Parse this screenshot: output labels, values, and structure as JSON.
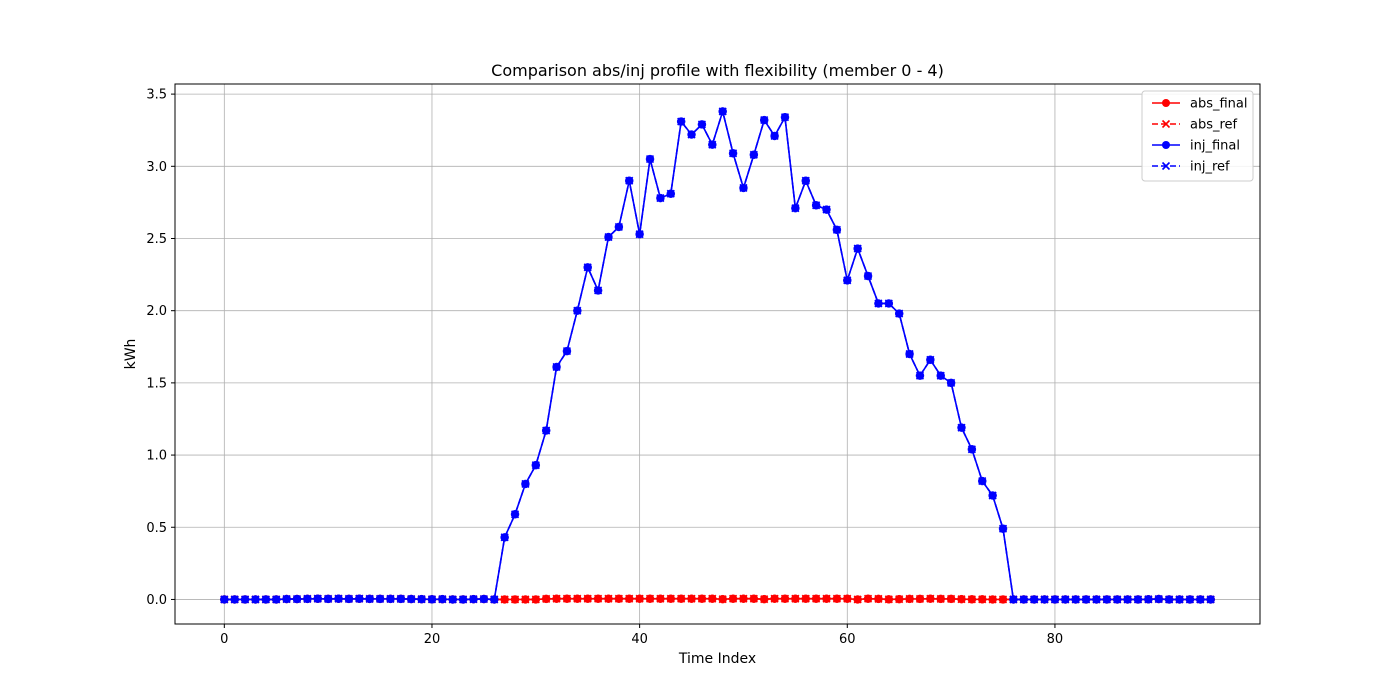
{
  "chart_data": {
    "type": "line",
    "title": "Comparison abs/inj profile with flexibility (member 0 - 4)",
    "xlabel": "Time Index",
    "ylabel": "kWh",
    "xlim": [
      -4.75,
      99.75
    ],
    "ylim": [
      -0.17,
      3.57
    ],
    "xticks": [
      0,
      20,
      40,
      60,
      80
    ],
    "yticks": [
      0.0,
      0.5,
      1.0,
      1.5,
      2.0,
      2.5,
      3.0,
      3.5
    ],
    "ytick_labels": [
      "0.0",
      "0.5",
      "1.0",
      "1.5",
      "2.0",
      "2.5",
      "3.0",
      "3.5"
    ],
    "grid": true,
    "legend_position": "top-right",
    "x": [
      0,
      1,
      2,
      3,
      4,
      5,
      6,
      7,
      8,
      9,
      10,
      11,
      12,
      13,
      14,
      15,
      16,
      17,
      18,
      19,
      20,
      21,
      22,
      23,
      24,
      25,
      26,
      27,
      28,
      29,
      30,
      31,
      32,
      33,
      34,
      35,
      36,
      37,
      38,
      39,
      40,
      41,
      42,
      43,
      44,
      45,
      46,
      47,
      48,
      49,
      50,
      51,
      52,
      53,
      54,
      55,
      56,
      57,
      58,
      59,
      60,
      61,
      62,
      63,
      64,
      65,
      66,
      67,
      68,
      69,
      70,
      71,
      72,
      73,
      74,
      75,
      76,
      77,
      78,
      79,
      80,
      81,
      82,
      83,
      84,
      85,
      86,
      87,
      88,
      89,
      90,
      91,
      92,
      93,
      94,
      95
    ],
    "series": [
      {
        "name": "abs_final",
        "color": "#ff0000",
        "line_style": "solid",
        "marker": "circle",
        "values": [
          0,
          0,
          0,
          0,
          0,
          0,
          0.003,
          0.003,
          0.004,
          0.005,
          0.004,
          0.005,
          0.004,
          0.005,
          0.004,
          0.004,
          0.004,
          0.004,
          0.003,
          0.002,
          0.001,
          0.002,
          0,
          0,
          0.002,
          0.003,
          0,
          0,
          0,
          0,
          0,
          0.004,
          0.005,
          0.005,
          0.005,
          0.005,
          0.005,
          0.005,
          0.005,
          0.005,
          0.005,
          0.005,
          0.005,
          0.005,
          0.005,
          0.005,
          0.005,
          0.005,
          0.002,
          0.005,
          0.005,
          0.005,
          0.002,
          0.005,
          0.005,
          0.005,
          0.005,
          0.005,
          0.005,
          0.005,
          0.005,
          0,
          0.005,
          0.004,
          0.001,
          0.002,
          0.004,
          0.004,
          0.005,
          0.004,
          0.004,
          0.002,
          0.001,
          0.001,
          0,
          0,
          0,
          0,
          0,
          0,
          0,
          0,
          0,
          0,
          0,
          0,
          0,
          0,
          0,
          0.001,
          0.003,
          0,
          0,
          0,
          0,
          0
        ]
      },
      {
        "name": "abs_ref",
        "color": "#ff0000",
        "line_style": "dashed",
        "marker": "x",
        "values": [
          0,
          0,
          0,
          0,
          0,
          0,
          0.003,
          0.003,
          0.004,
          0.005,
          0.004,
          0.005,
          0.004,
          0.005,
          0.004,
          0.004,
          0.004,
          0.004,
          0.003,
          0.002,
          0.001,
          0.002,
          0,
          0,
          0.002,
          0.003,
          0,
          0,
          0,
          0,
          0,
          0.004,
          0.005,
          0.005,
          0.005,
          0.005,
          0.005,
          0.005,
          0.005,
          0.005,
          0.005,
          0.005,
          0.005,
          0.005,
          0.005,
          0.005,
          0.005,
          0.005,
          0.002,
          0.005,
          0.005,
          0.005,
          0.002,
          0.005,
          0.005,
          0.005,
          0.005,
          0.005,
          0.005,
          0.005,
          0.005,
          0,
          0.005,
          0.004,
          0.001,
          0.002,
          0.004,
          0.004,
          0.005,
          0.004,
          0.004,
          0.002,
          0.001,
          0.001,
          0,
          0,
          0,
          0,
          0,
          0,
          0,
          0,
          0,
          0,
          0,
          0,
          0,
          0,
          0,
          0.001,
          0.003,
          0,
          0,
          0,
          0,
          0
        ]
      },
      {
        "name": "inj_final",
        "color": "#0000ff",
        "line_style": "solid",
        "marker": "circle",
        "values": [
          0,
          0,
          0,
          0,
          0,
          0,
          0.003,
          0.003,
          0.004,
          0.005,
          0.004,
          0.005,
          0.004,
          0.005,
          0.004,
          0.004,
          0.004,
          0.004,
          0.003,
          0.002,
          0.001,
          0.002,
          0,
          0,
          0.002,
          0.003,
          0,
          0.43,
          0.59,
          0.8,
          0.93,
          1.17,
          1.61,
          1.72,
          2.0,
          2.3,
          2.14,
          2.51,
          2.58,
          2.9,
          2.53,
          3.05,
          2.78,
          2.81,
          3.31,
          3.22,
          3.29,
          3.15,
          3.38,
          3.09,
          2.85,
          3.08,
          3.32,
          3.21,
          3.34,
          2.71,
          2.9,
          2.73,
          2.7,
          2.56,
          2.21,
          2.43,
          2.24,
          2.05,
          2.05,
          1.98,
          1.7,
          1.55,
          1.66,
          1.55,
          1.5,
          1.19,
          1.04,
          0.82,
          0.72,
          0.49,
          0,
          0,
          0,
          0,
          0,
          0,
          0,
          0,
          0,
          0,
          0,
          0,
          0,
          0.001,
          0.003,
          0,
          0,
          0,
          0,
          0
        ]
      },
      {
        "name": "inj_ref",
        "color": "#0000ff",
        "line_style": "dashed",
        "marker": "x",
        "values": [
          0,
          0,
          0,
          0,
          0,
          0,
          0.003,
          0.003,
          0.004,
          0.005,
          0.004,
          0.005,
          0.004,
          0.005,
          0.004,
          0.004,
          0.004,
          0.004,
          0.003,
          0.002,
          0.001,
          0.002,
          0,
          0,
          0.002,
          0.003,
          0,
          0.43,
          0.59,
          0.8,
          0.93,
          1.17,
          1.61,
          1.72,
          2.0,
          2.3,
          2.14,
          2.51,
          2.58,
          2.9,
          2.53,
          3.05,
          2.78,
          2.81,
          3.31,
          3.22,
          3.29,
          3.15,
          3.38,
          3.09,
          2.85,
          3.08,
          3.32,
          3.21,
          3.34,
          2.71,
          2.9,
          2.73,
          2.7,
          2.56,
          2.21,
          2.43,
          2.24,
          2.05,
          2.05,
          1.98,
          1.7,
          1.55,
          1.66,
          1.55,
          1.5,
          1.19,
          1.04,
          0.82,
          0.72,
          0.49,
          0,
          0,
          0,
          0,
          0,
          0,
          0,
          0,
          0,
          0,
          0,
          0,
          0,
          0.001,
          0.003,
          0,
          0,
          0,
          0,
          0
        ]
      }
    ]
  }
}
